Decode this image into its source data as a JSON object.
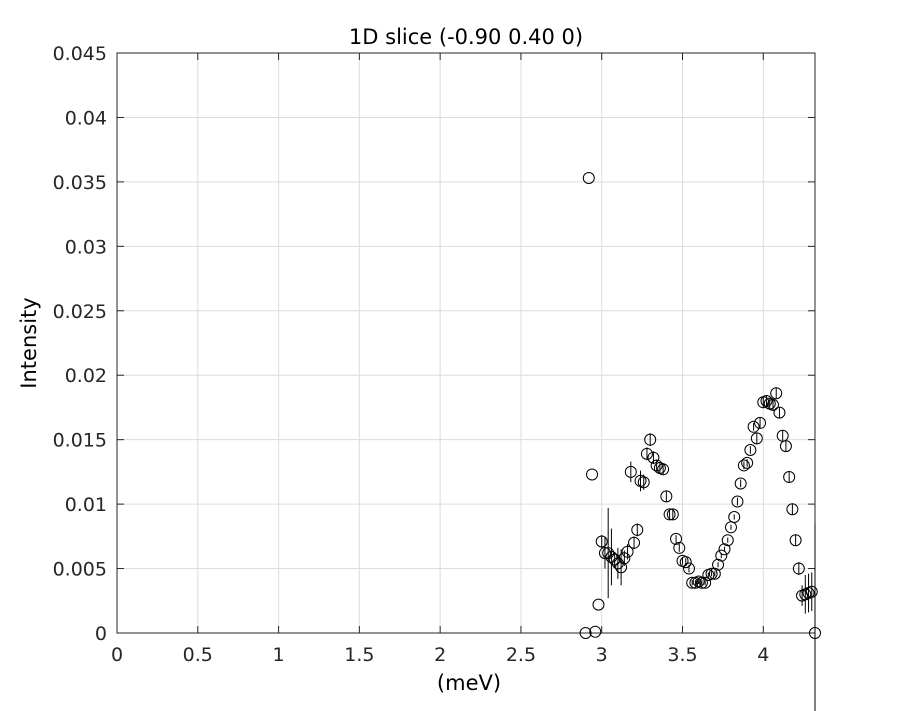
{
  "chart_data": {
    "type": "scatter",
    "title": "1D slice (-0.90 0.40 0)",
    "xlabel": "(meV)",
    "ylabel": "Intensity",
    "xlim": [
      0,
      4.32
    ],
    "ylim": [
      0,
      0.045
    ],
    "xticks": [
      0,
      0.5,
      1,
      1.5,
      2,
      2.5,
      3,
      3.5,
      4
    ],
    "xtick_labels": [
      "0",
      "0.5",
      "1",
      "1.5",
      "2",
      "2.5",
      "3",
      "3.5",
      "4"
    ],
    "yticks": [
      0,
      0.005,
      0.01,
      0.015,
      0.02,
      0.025,
      0.03,
      0.035,
      0.04,
      0.045
    ],
    "ytick_labels": [
      "0",
      "0.005",
      "0.01",
      "0.015",
      "0.02",
      "0.025",
      "0.03",
      "0.035",
      "0.04",
      "0.045"
    ],
    "grid": true,
    "marker": "open-circle",
    "colors": {
      "marker": "#000000",
      "grid": "#dcdcdc",
      "axes": "#262626",
      "background": "#ffffff"
    },
    "series": [
      {
        "x": [
          2.9,
          2.92,
          2.94,
          2.96,
          2.98,
          3.0,
          3.02,
          3.04,
          3.06,
          3.08,
          3.1,
          3.12,
          3.14,
          3.16,
          3.18,
          3.2,
          3.22,
          3.24,
          3.26,
          3.28,
          3.3,
          3.32,
          3.34,
          3.36,
          3.38,
          3.4,
          3.42,
          3.44,
          3.46,
          3.48,
          3.5,
          3.52,
          3.54,
          3.56,
          3.58,
          3.6,
          3.62,
          3.64,
          3.66,
          3.68,
          3.7,
          3.72,
          3.74,
          3.76,
          3.78,
          3.8,
          3.82,
          3.84,
          3.86,
          3.88,
          3.9,
          3.92,
          3.94,
          3.96,
          3.98,
          4.0,
          4.02,
          4.04,
          4.06,
          4.08,
          4.1,
          4.12,
          4.14,
          4.16,
          4.18,
          4.2,
          4.22,
          4.24,
          4.26,
          4.28,
          4.3,
          4.32
        ],
        "y": [
          0.0,
          0.0353,
          0.0123,
          0.0001,
          0.0022,
          0.0071,
          0.0062,
          0.0062,
          0.0059,
          0.0057,
          0.0054,
          0.0051,
          0.0058,
          0.0063,
          0.0125,
          0.007,
          0.008,
          0.0118,
          0.0117,
          0.0139,
          0.015,
          0.0136,
          0.013,
          0.0128,
          0.0127,
          0.0106,
          0.0092,
          0.0092,
          0.0073,
          0.0066,
          0.0056,
          0.0055,
          0.005,
          0.0039,
          0.0039,
          0.004,
          0.0039,
          0.0039,
          0.0045,
          0.0046,
          0.0046,
          0.0053,
          0.006,
          0.0065,
          0.0072,
          0.0082,
          0.009,
          0.0102,
          0.0116,
          0.013,
          0.0132,
          0.0142,
          0.016,
          0.0151,
          0.0163,
          0.0179,
          0.018,
          0.0178,
          0.0177,
          0.0186,
          0.0171,
          0.0153,
          0.0145,
          0.0121,
          0.0096,
          0.0072,
          0.005,
          0.0029,
          0.003,
          0.0031,
          0.0032,
          0.0
        ],
        "err": [
          0.0,
          0.0,
          0.0,
          0.0,
          0.0,
          0.0005,
          0.0012,
          0.0035,
          0.0022,
          0.0006,
          0.0012,
          0.0014,
          0.0006,
          0.0006,
          0.0008,
          0.0005,
          0.0005,
          0.0008,
          0.0006,
          0.0005,
          0.0005,
          0.0005,
          0.0004,
          0.0004,
          0.0004,
          0.0004,
          0.0004,
          0.0004,
          0.0003,
          0.0003,
          0.0003,
          0.0003,
          0.0003,
          0.0002,
          0.0002,
          0.0002,
          0.0002,
          0.0002,
          0.0002,
          0.0002,
          0.0002,
          0.0002,
          0.0002,
          0.0002,
          0.0002,
          0.0002,
          0.0002,
          0.0003,
          0.0003,
          0.0003,
          0.0003,
          0.0003,
          0.0003,
          0.0004,
          0.0004,
          0.0004,
          0.0004,
          0.0004,
          0.0004,
          0.0004,
          0.0004,
          0.0004,
          0.0004,
          0.0004,
          0.0004,
          0.0004,
          0.0005,
          0.0008,
          0.0015,
          0.0015,
          0.0015,
          0.0085
        ]
      }
    ]
  }
}
